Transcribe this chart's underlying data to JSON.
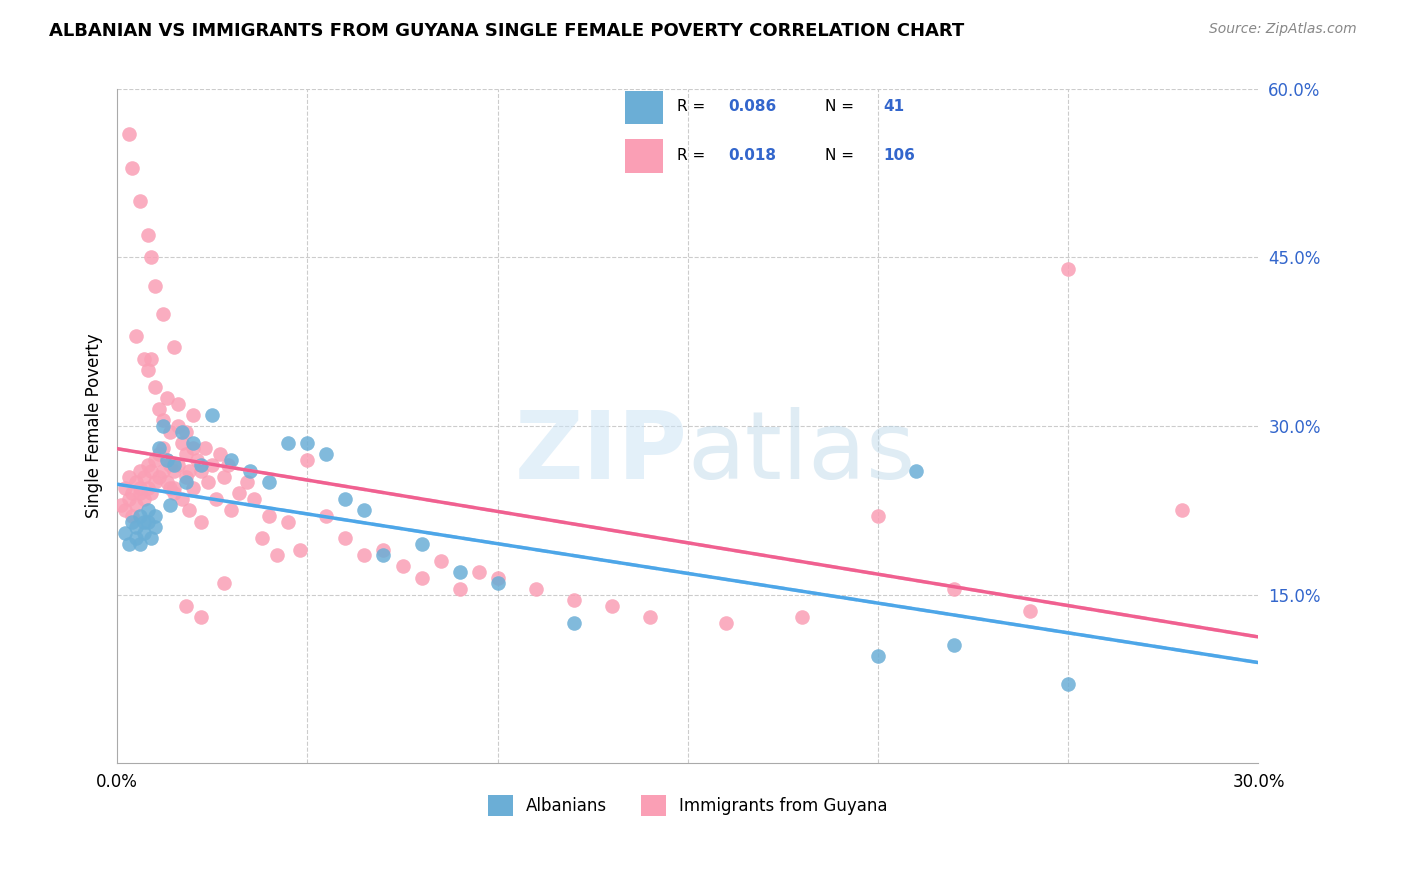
{
  "title": "ALBANIAN VS IMMIGRANTS FROM GUYANA SINGLE FEMALE POVERTY CORRELATION CHART",
  "source": "Source: ZipAtlas.com",
  "ylabel": "Single Female Poverty",
  "legend_label_1": "Albanians",
  "legend_label_2": "Immigrants from Guyana",
  "color_blue": "#6baed6",
  "color_pink": "#fa9fb5",
  "color_legend_text": "#3366cc",
  "xlim": [
    0.0,
    0.3
  ],
  "ylim": [
    0.0,
    0.6
  ],
  "albanians_x": [
    0.002,
    0.003,
    0.004,
    0.005,
    0.005,
    0.006,
    0.006,
    0.007,
    0.007,
    0.008,
    0.008,
    0.009,
    0.01,
    0.01,
    0.011,
    0.012,
    0.013,
    0.014,
    0.015,
    0.017,
    0.018,
    0.02,
    0.022,
    0.025,
    0.03,
    0.035,
    0.04,
    0.045,
    0.05,
    0.055,
    0.06,
    0.065,
    0.07,
    0.08,
    0.09,
    0.1,
    0.12,
    0.2,
    0.21,
    0.22,
    0.25
  ],
  "albanians_y": [
    0.205,
    0.195,
    0.215,
    0.21,
    0.2,
    0.22,
    0.195,
    0.215,
    0.205,
    0.225,
    0.215,
    0.2,
    0.22,
    0.21,
    0.28,
    0.3,
    0.27,
    0.23,
    0.265,
    0.295,
    0.25,
    0.285,
    0.265,
    0.31,
    0.27,
    0.26,
    0.25,
    0.285,
    0.285,
    0.275,
    0.235,
    0.225,
    0.185,
    0.195,
    0.17,
    0.16,
    0.125,
    0.095,
    0.26,
    0.105,
    0.07
  ],
  "guyana_x": [
    0.001,
    0.002,
    0.002,
    0.003,
    0.003,
    0.004,
    0.004,
    0.005,
    0.005,
    0.006,
    0.006,
    0.006,
    0.007,
    0.007,
    0.008,
    0.008,
    0.009,
    0.009,
    0.01,
    0.01,
    0.011,
    0.011,
    0.012,
    0.012,
    0.013,
    0.013,
    0.014,
    0.014,
    0.015,
    0.015,
    0.016,
    0.016,
    0.017,
    0.018,
    0.018,
    0.019,
    0.02,
    0.02,
    0.021,
    0.022,
    0.023,
    0.024,
    0.025,
    0.026,
    0.027,
    0.028,
    0.029,
    0.03,
    0.032,
    0.034,
    0.036,
    0.038,
    0.04,
    0.042,
    0.045,
    0.048,
    0.05,
    0.055,
    0.06,
    0.065,
    0.07,
    0.075,
    0.08,
    0.085,
    0.09,
    0.095,
    0.1,
    0.11,
    0.12,
    0.13,
    0.14,
    0.16,
    0.18,
    0.2,
    0.22,
    0.24,
    0.25,
    0.28,
    0.005,
    0.007,
    0.008,
    0.009,
    0.01,
    0.011,
    0.012,
    0.013,
    0.014,
    0.015,
    0.016,
    0.017,
    0.018,
    0.019,
    0.02,
    0.022,
    0.003,
    0.004,
    0.006,
    0.008,
    0.009,
    0.01,
    0.012,
    0.015,
    0.018,
    0.022,
    0.028
  ],
  "guyana_y": [
    0.23,
    0.245,
    0.225,
    0.255,
    0.235,
    0.24,
    0.22,
    0.25,
    0.23,
    0.245,
    0.26,
    0.24,
    0.255,
    0.235,
    0.265,
    0.245,
    0.26,
    0.24,
    0.27,
    0.25,
    0.275,
    0.255,
    0.28,
    0.26,
    0.27,
    0.25,
    0.265,
    0.245,
    0.26,
    0.24,
    0.32,
    0.3,
    0.285,
    0.295,
    0.275,
    0.26,
    0.31,
    0.28,
    0.27,
    0.26,
    0.28,
    0.25,
    0.265,
    0.235,
    0.275,
    0.255,
    0.265,
    0.225,
    0.24,
    0.25,
    0.235,
    0.2,
    0.22,
    0.185,
    0.215,
    0.19,
    0.27,
    0.22,
    0.2,
    0.185,
    0.19,
    0.175,
    0.165,
    0.18,
    0.155,
    0.17,
    0.165,
    0.155,
    0.145,
    0.14,
    0.13,
    0.125,
    0.13,
    0.22,
    0.155,
    0.135,
    0.44,
    0.225,
    0.38,
    0.36,
    0.35,
    0.36,
    0.335,
    0.315,
    0.305,
    0.325,
    0.295,
    0.245,
    0.265,
    0.235,
    0.255,
    0.225,
    0.245,
    0.215,
    0.56,
    0.53,
    0.5,
    0.47,
    0.45,
    0.425,
    0.4,
    0.37,
    0.14,
    0.13,
    0.16
  ]
}
